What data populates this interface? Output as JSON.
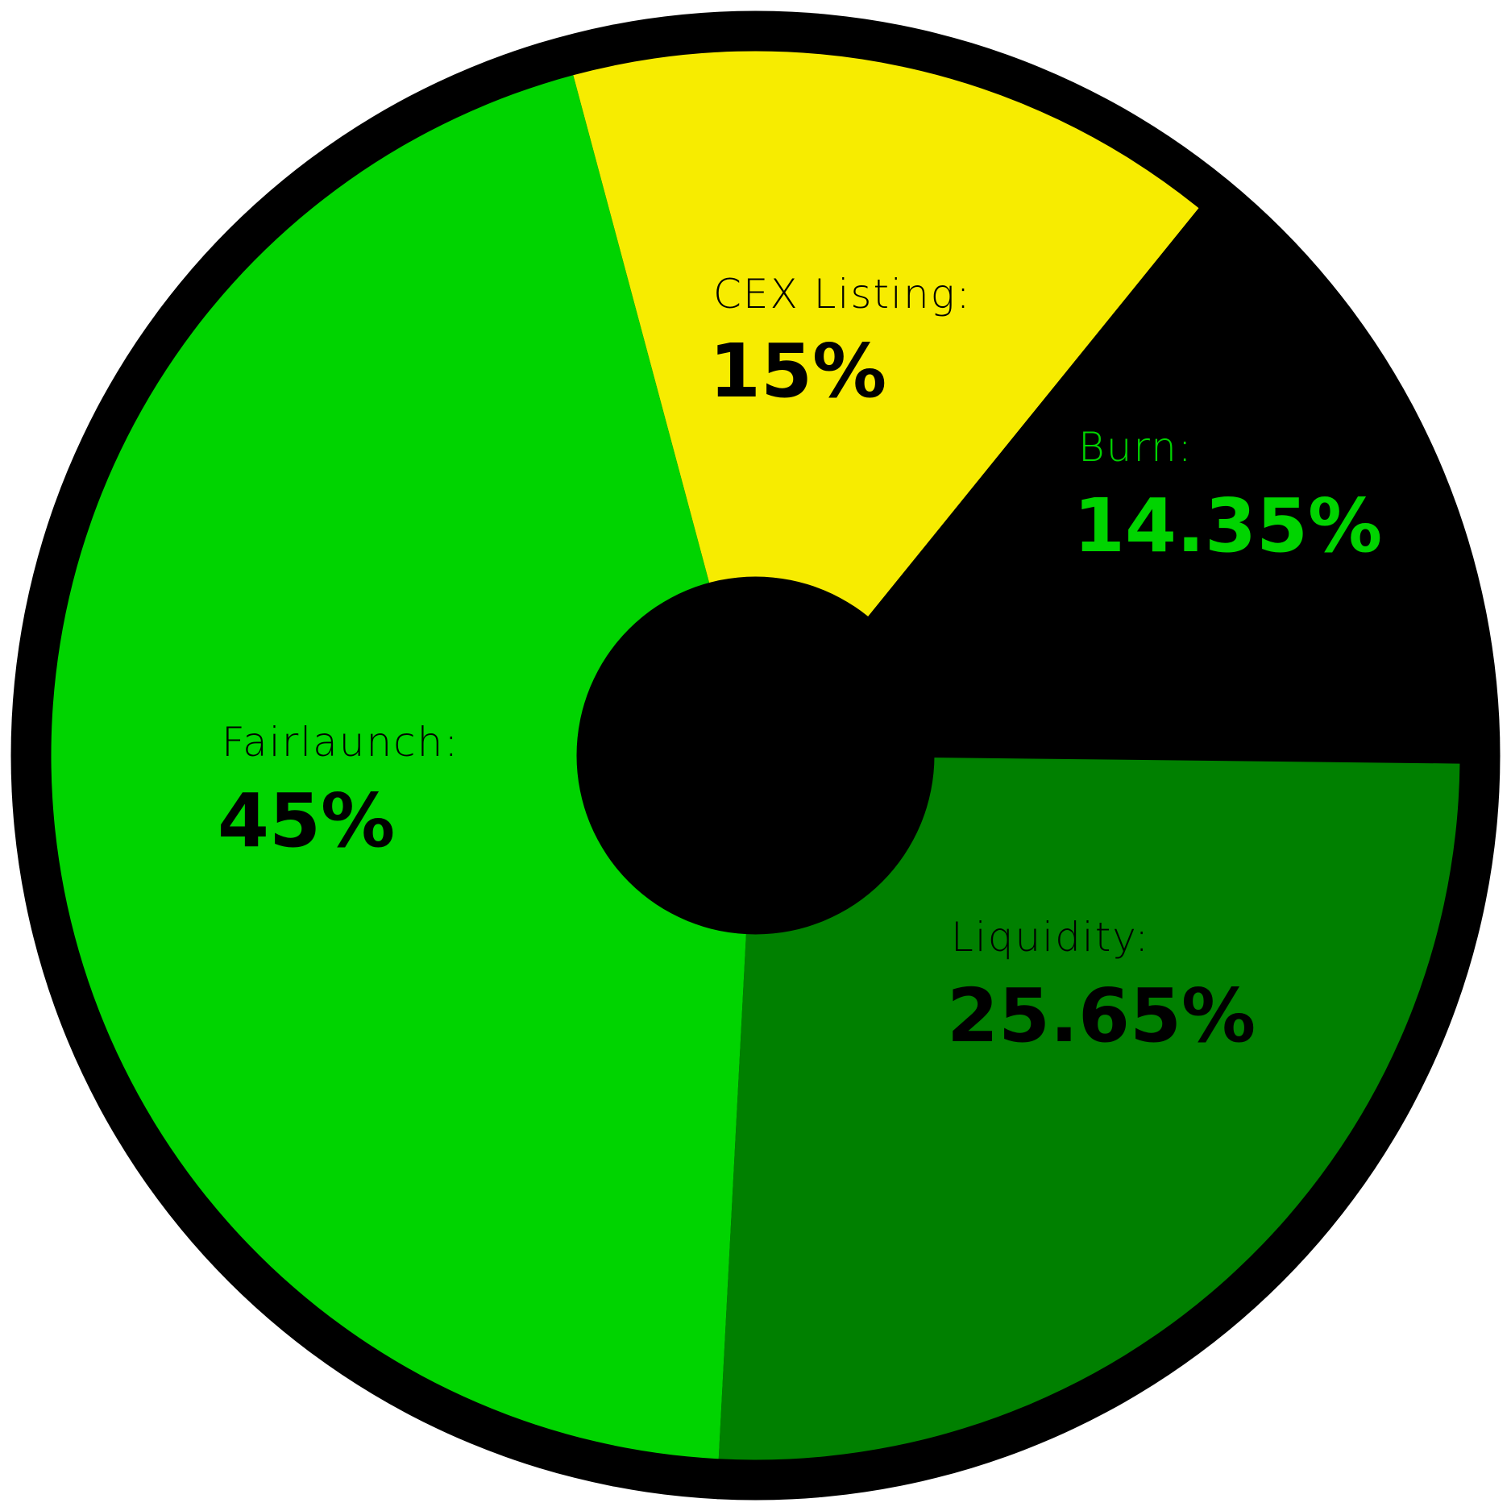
{
  "chart_data": {
    "type": "pie",
    "donut": true,
    "start_angle_deg": -105,
    "direction": "clockwise",
    "slices": [
      {
        "label": "CEX Listing:",
        "value": 15,
        "display": "15%",
        "color": "#f7ec00",
        "text_color": "#000000"
      },
      {
        "label": "Burn:",
        "value": 14.35,
        "display": "14.35%",
        "color": "#000000",
        "text_color": "#00d400"
      },
      {
        "label": "Liquidity:",
        "value": 25.65,
        "display": "25.65%",
        "color": "#008000",
        "text_color": "#000000"
      },
      {
        "label": "Fairlaunch:",
        "value": 45,
        "display": "45%",
        "color": "#00d400",
        "text_color": "#000000"
      }
    ],
    "ring_color": "#000000",
    "hole_color": "#000000",
    "legend": "none",
    "grid": false
  }
}
